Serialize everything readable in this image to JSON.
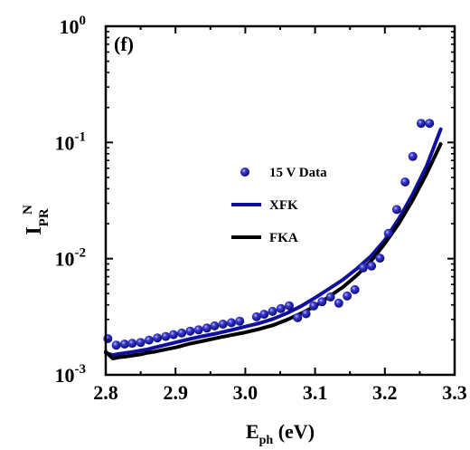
{
  "chart_data": {
    "type": "scatter",
    "panel_label": "(f)",
    "xlabel": {
      "main": "E",
      "sub": "ph",
      "suffix": " (eV)"
    },
    "ylabel": {
      "main": "I",
      "sub": "PR",
      "sup": "N"
    },
    "xlim": [
      2.8,
      3.3
    ],
    "ylim": [
      0.001,
      1
    ],
    "yscale": "log",
    "grid": false,
    "legend_position": "center",
    "x_ticks": [
      {
        "value": 2.8,
        "label": "2.8"
      },
      {
        "value": 2.9,
        "label": "2.9"
      },
      {
        "value": 3.0,
        "label": "3.0"
      },
      {
        "value": 3.1,
        "label": "3.1"
      },
      {
        "value": 3.2,
        "label": "3.2"
      },
      {
        "value": 3.3,
        "label": "3.3"
      }
    ],
    "y_ticks": [
      {
        "value": 0.001,
        "base": "10",
        "exp": "-3"
      },
      {
        "value": 0.01,
        "base": "10",
        "exp": "-2"
      },
      {
        "value": 0.1,
        "base": "10",
        "exp": "-1"
      },
      {
        "value": 1,
        "base": "10",
        "exp": "0"
      }
    ],
    "series": [
      {
        "name": "15 V Data",
        "kind": "markers",
        "color": "#1a1a9c",
        "x": [
          2.803,
          2.815,
          2.827,
          2.838,
          2.85,
          2.862,
          2.874,
          2.886,
          2.897,
          2.909,
          2.921,
          2.933,
          2.945,
          2.956,
          2.968,
          2.98,
          2.992,
          3.016,
          3.027,
          3.039,
          3.051,
          3.063,
          3.075,
          3.087,
          3.098,
          3.11,
          3.122,
          3.134,
          3.146,
          3.157,
          3.169,
          3.181,
          3.193,
          3.205,
          3.217,
          3.229,
          3.24,
          3.252,
          3.264
        ],
        "y": [
          0.00205,
          0.0018,
          0.00184,
          0.00187,
          0.0019,
          0.00199,
          0.00208,
          0.00214,
          0.00222,
          0.00229,
          0.00238,
          0.00244,
          0.00253,
          0.00264,
          0.00273,
          0.00281,
          0.0029,
          0.00316,
          0.00332,
          0.00352,
          0.00372,
          0.00393,
          0.0031,
          0.00336,
          0.00392,
          0.00426,
          0.00468,
          0.00414,
          0.00477,
          0.00541,
          0.00834,
          0.00864,
          0.0101,
          0.0165,
          0.0265,
          0.0457,
          0.0758,
          0.146,
          0.146
        ]
      },
      {
        "name": "XFK",
        "kind": "line",
        "color": "#1010a0",
        "x": [
          2.8,
          2.81,
          2.82,
          2.83,
          2.84,
          2.85,
          2.86,
          2.87,
          2.88,
          2.9,
          2.92,
          2.94,
          2.96,
          2.98,
          3.0,
          3.02,
          3.04,
          3.06,
          3.08,
          3.1,
          3.12,
          3.14,
          3.16,
          3.18,
          3.2,
          3.22,
          3.24,
          3.26,
          3.28
        ],
        "y": [
          0.00155,
          0.00148,
          0.00152,
          0.00155,
          0.00158,
          0.00162,
          0.00166,
          0.00172,
          0.00178,
          0.0019,
          0.00203,
          0.00216,
          0.00228,
          0.00243,
          0.0026,
          0.00278,
          0.00303,
          0.0034,
          0.0039,
          0.0046,
          0.0055,
          0.0066,
          0.0082,
          0.0105,
          0.0145,
          0.022,
          0.036,
          0.063,
          0.13
        ]
      },
      {
        "name": "FKA",
        "kind": "line",
        "color": "#000000",
        "x": [
          2.8,
          2.81,
          2.82,
          2.83,
          2.84,
          2.85,
          2.86,
          2.87,
          2.88,
          2.9,
          2.92,
          2.94,
          2.96,
          2.98,
          3.0,
          3.02,
          3.04,
          3.06,
          3.08,
          3.1,
          3.12,
          3.14,
          3.16,
          3.18,
          3.2,
          3.22,
          3.24,
          3.26,
          3.28
        ],
        "y": [
          0.00158,
          0.00138,
          0.00142,
          0.00144,
          0.00147,
          0.0015,
          0.00155,
          0.00158,
          0.00163,
          0.00172,
          0.00185,
          0.00196,
          0.00208,
          0.0022,
          0.00232,
          0.00248,
          0.00268,
          0.00298,
          0.00338,
          0.0039,
          0.0047,
          0.0057,
          0.0072,
          0.0095,
          0.0135,
          0.02,
          0.032,
          0.054,
          0.097
        ]
      }
    ],
    "legend": [
      {
        "label": "15 V Data",
        "kind": "marker",
        "color": "#1a1a9c"
      },
      {
        "label": "XFK",
        "kind": "line",
        "color": "#1010a0"
      },
      {
        "label": "FKA",
        "kind": "line",
        "color": "#000000"
      }
    ]
  }
}
